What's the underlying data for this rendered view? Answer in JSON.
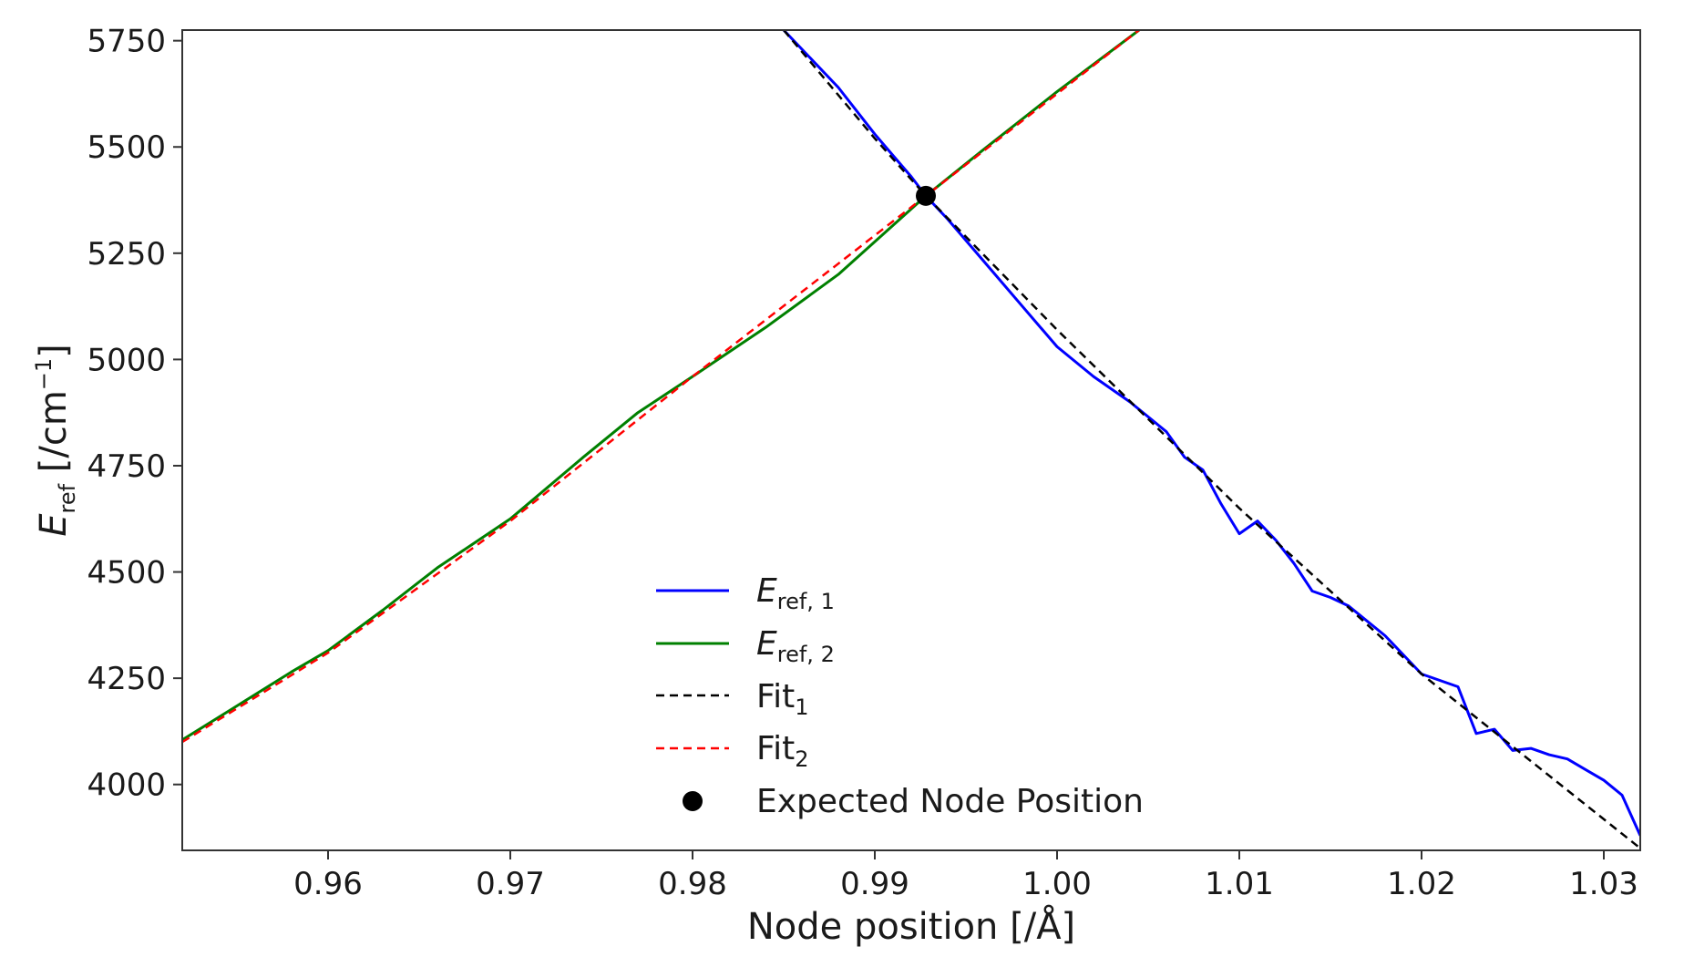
{
  "chart_data": {
    "type": "line",
    "xlabel": "Node position [/Å]",
    "ylabel": {
      "main": "E",
      "sub": "ref",
      "unit_pre": " [/cm",
      "unit_sup": "−1",
      "unit_post": "]"
    },
    "xlim": [
      0.952,
      1.032
    ],
    "ylim": [
      3845,
      5775
    ],
    "xticks": [
      0.96,
      0.97,
      0.98,
      0.99,
      1.0,
      1.01,
      1.02,
      1.03
    ],
    "xtick_labels": [
      "0.96",
      "0.97",
      "0.98",
      "0.99",
      "1.00",
      "1.01",
      "1.02",
      "1.03"
    ],
    "yticks": [
      4000,
      4250,
      4500,
      4750,
      5000,
      5250,
      5500,
      5750
    ],
    "ytick_labels": [
      "4000",
      "4250",
      "4500",
      "4750",
      "5000",
      "5250",
      "5500",
      "5750"
    ],
    "grid": false,
    "legend_position": "bottom-center",
    "series": [
      {
        "name": {
          "main": "E",
          "sub": "ref, 1"
        },
        "color": "#0000ff",
        "style": "solid",
        "x": [
          0.985,
          0.988,
          0.99,
          0.991,
          0.992,
          0.9928,
          0.994,
          0.996,
          0.998,
          1.0,
          1.002,
          1.004,
          1.006,
          1.007,
          1.008,
          1.009,
          1.01,
          1.011,
          1.012,
          1.013,
          1.014,
          1.015,
          1.016,
          1.018,
          1.02,
          1.021,
          1.022,
          1.023,
          1.024,
          1.025,
          1.026,
          1.027,
          1.028,
          1.029,
          1.03,
          1.031,
          1.032
        ],
        "y": [
          5775,
          5640,
          5530,
          5480,
          5430,
          5385,
          5330,
          5230,
          5130,
          5030,
          4960,
          4900,
          4830,
          4770,
          4740,
          4660,
          4590,
          4620,
          4575,
          4520,
          4455,
          4440,
          4420,
          4350,
          4260,
          4245,
          4230,
          4120,
          4130,
          4080,
          4085,
          4070,
          4060,
          4035,
          4010,
          3975,
          3880
        ]
      },
      {
        "name": {
          "main": "E",
          "sub": "ref, 2"
        },
        "color": "#008000",
        "style": "solid",
        "x": [
          0.952,
          0.955,
          0.958,
          0.96,
          0.963,
          0.966,
          0.97,
          0.974,
          0.977,
          0.98,
          0.984,
          0.988,
          0.9928,
          0.996,
          1.0,
          1.0045
        ],
        "y": [
          4105,
          4185,
          4265,
          4315,
          4410,
          4510,
          4625,
          4770,
          4875,
          4960,
          5075,
          5200,
          5385,
          5495,
          5630,
          5775
        ]
      },
      {
        "name": {
          "main": "Fit",
          "sub": "1"
        },
        "color": "#000000",
        "style": "dashed",
        "x": [
          0.985,
          0.99,
          0.9928,
          1.0,
          1.01,
          1.02,
          1.032
        ],
        "y": [
          5775,
          5520,
          5385,
          5070,
          4650,
          4260,
          3850
        ]
      },
      {
        "name": {
          "main": "Fit",
          "sub": "2"
        },
        "color": "#ff0000",
        "style": "dashed",
        "x": [
          0.952,
          0.96,
          0.97,
          0.98,
          0.9928,
          1.0,
          1.0045
        ],
        "y": [
          4100,
          4310,
          4620,
          4960,
          5385,
          5625,
          5775
        ]
      }
    ],
    "marker": {
      "name": "Expected Node Position",
      "x": 0.9928,
      "y": 5385,
      "color": "#000000"
    }
  }
}
